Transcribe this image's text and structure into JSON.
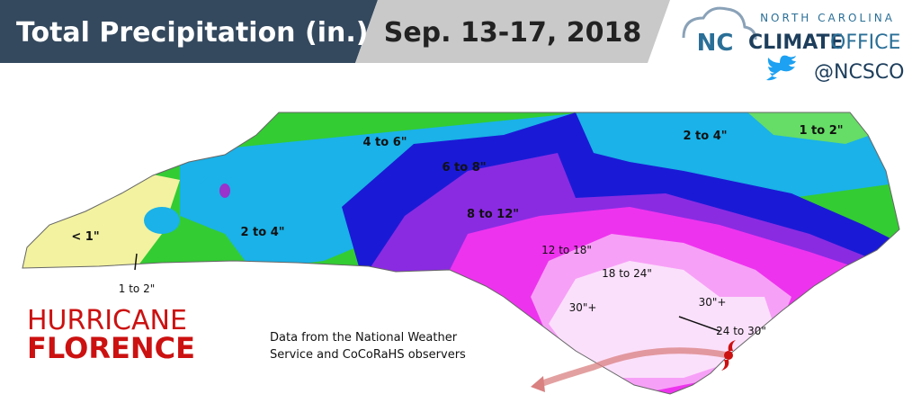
{
  "header": {
    "title": "Total Precipitation (in.)",
    "date": "Sep. 13-17, 2018"
  },
  "logo": {
    "mark": "NC",
    "line1": "NORTH CAROLINA",
    "climate": "CLIMATE",
    "office": "OFFICE",
    "handle": "@NCSCO"
  },
  "map": {
    "labels": [
      "< 1\"",
      "1 to 2\"",
      "2 to 4\"",
      "4 to 6\"",
      "6 to 8\"",
      "8 to 12\"",
      "2 to 4\"",
      "1 to 2\"",
      "12 to 18\"",
      "18 to 24\"",
      "30\"+",
      "30\"+",
      "24 to 30\""
    ]
  },
  "storm": {
    "line1": "HURRICANE",
    "line2": "FLORENCE"
  },
  "source": {
    "lines": [
      "Data from the National Weather",
      "Service and CoCoRaHS observers"
    ]
  }
}
